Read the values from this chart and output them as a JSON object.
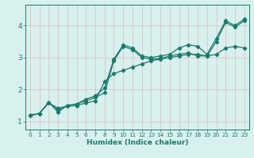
{
  "title": "",
  "xlabel": "Humidex (Indice chaleur)",
  "bg_color": "#d8f0ee",
  "grid_color": "#ddbbbb",
  "line_color": "#1a7a6e",
  "xlim": [
    -0.5,
    23.5
  ],
  "ylim": [
    0.75,
    4.65
  ],
  "xticks": [
    0,
    1,
    2,
    3,
    4,
    5,
    6,
    7,
    8,
    9,
    10,
    11,
    12,
    13,
    14,
    15,
    16,
    17,
    18,
    19,
    20,
    21,
    22,
    23
  ],
  "yticks": [
    1,
    2,
    3,
    4
  ],
  "series": [
    [
      1.2,
      1.25,
      1.6,
      1.35,
      1.5,
      1.55,
      1.7,
      1.8,
      2.05,
      2.95,
      3.4,
      3.3,
      3.05,
      3.0,
      3.05,
      3.1,
      3.3,
      3.4,
      3.35,
      3.1,
      3.6,
      4.15,
      4.0,
      4.2
    ],
    [
      1.2,
      1.25,
      1.6,
      1.3,
      1.5,
      1.55,
      1.65,
      1.75,
      1.9,
      2.9,
      3.35,
      3.25,
      3.0,
      2.95,
      2.97,
      3.05,
      3.1,
      3.15,
      3.05,
      3.05,
      3.5,
      4.1,
      3.95,
      4.15
    ],
    [
      1.2,
      1.25,
      1.58,
      1.42,
      1.48,
      1.5,
      1.58,
      1.65,
      2.25,
      2.5,
      2.6,
      2.7,
      2.8,
      2.9,
      2.95,
      3.0,
      3.05,
      3.1,
      3.1,
      3.05,
      3.1,
      3.3,
      3.35,
      3.3
    ]
  ],
  "xlabel_fontsize": 6.5,
  "tick_fontsize": 5.2,
  "ytick_fontsize": 6.5,
  "linewidth": 0.9,
  "markersize": 2.2
}
